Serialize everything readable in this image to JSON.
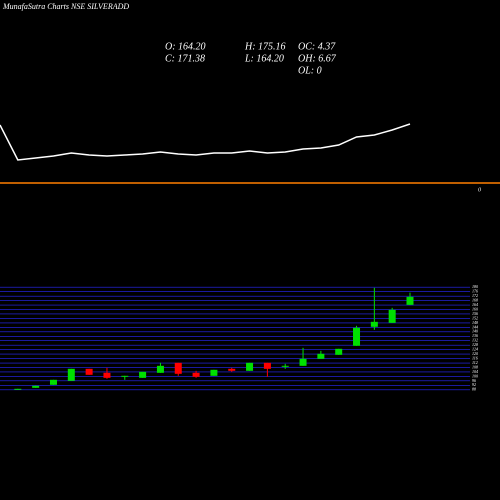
{
  "header": {
    "title": "MunafaSutra Charts NSE SILVERADD",
    "ohlc": [
      "O: 164.20",
      "H: 175.16",
      "OC: 4.37",
      "C: 171.38",
      "L: 164.20",
      "OH: 6.67",
      "OL: 0"
    ]
  },
  "chart_data": [
    {
      "type": "line",
      "color": "#ffffff",
      "x": [
        0,
        1,
        2,
        3,
        4,
        5,
        6,
        7,
        8,
        9,
        10,
        11,
        12,
        13,
        14,
        15,
        16,
        17,
        18,
        19,
        20,
        21,
        22,
        23
      ],
      "values": [
        69.88,
        27.71,
        30.12,
        32.53,
        36.14,
        33.73,
        32.53,
        33.73,
        34.94,
        37.35,
        34.94,
        33.73,
        36.14,
        36.14,
        38.55,
        36.14,
        37.35,
        40.96,
        42.17,
        45.78,
        55.42,
        57.83,
        63.86,
        71.08
      ],
      "xlim": [
        0,
        23
      ],
      "ylim": [
        0,
        100
      ],
      "yticks": [
        0
      ],
      "grid_color": "#ff7f00"
    },
    {
      "type": "candlestick",
      "up_color": "#00e000",
      "down_color": "#ff0000",
      "grid_color": "#2a2aff",
      "x": [
        1,
        2,
        3,
        4,
        5,
        6,
        7,
        8,
        9,
        10,
        11,
        12,
        13,
        14,
        15,
        16,
        17,
        18,
        19,
        20,
        21,
        22,
        23
      ],
      "open": [
        87.96,
        89.75,
        92.44,
        96.03,
        106.8,
        103.21,
        99.62,
        98.72,
        103.21,
        112.18,
        103.21,
        100.52,
        106.8,
        105.0,
        112.18,
        108.59,
        109.49,
        115.77,
        119.35,
        127.43,
        144.47,
        148.06,
        164.2
      ],
      "high": [
        88.86,
        91.55,
        96.93,
        106.8,
        106.8,
        107.69,
        100.52,
        104.11,
        112.18,
        112.18,
        105.0,
        105.9,
        107.69,
        112.18,
        112.18,
        111.28,
        125.63,
        122.94,
        124.74,
        145.37,
        179.45,
        161.51,
        175.16
      ],
      "low": [
        87.96,
        89.75,
        92.44,
        96.03,
        101.42,
        97.83,
        96.93,
        98.72,
        103.21,
        100.52,
        98.72,
        100.52,
        104.11,
        105.0,
        99.62,
        106.8,
        109.49,
        115.77,
        119.35,
        127.43,
        141.78,
        148.06,
        164.2
      ],
      "close": [
        88.86,
        91.55,
        96.93,
        106.8,
        101.42,
        98.72,
        100.52,
        104.11,
        109.49,
        102.31,
        99.62,
        105.9,
        105.0,
        112.18,
        106.8,
        109.49,
        115.77,
        120.25,
        124.74,
        143.57,
        148.95,
        159.72,
        171.38
      ],
      "xlim": [
        0,
        23
      ],
      "ylim": [
        86,
        182
      ],
      "yticks": [
        88,
        92,
        96,
        100,
        104,
        108,
        112,
        116,
        120,
        124,
        128,
        132,
        136,
        140,
        144,
        148,
        152,
        156,
        160,
        164,
        168,
        172,
        176,
        180
      ]
    }
  ]
}
